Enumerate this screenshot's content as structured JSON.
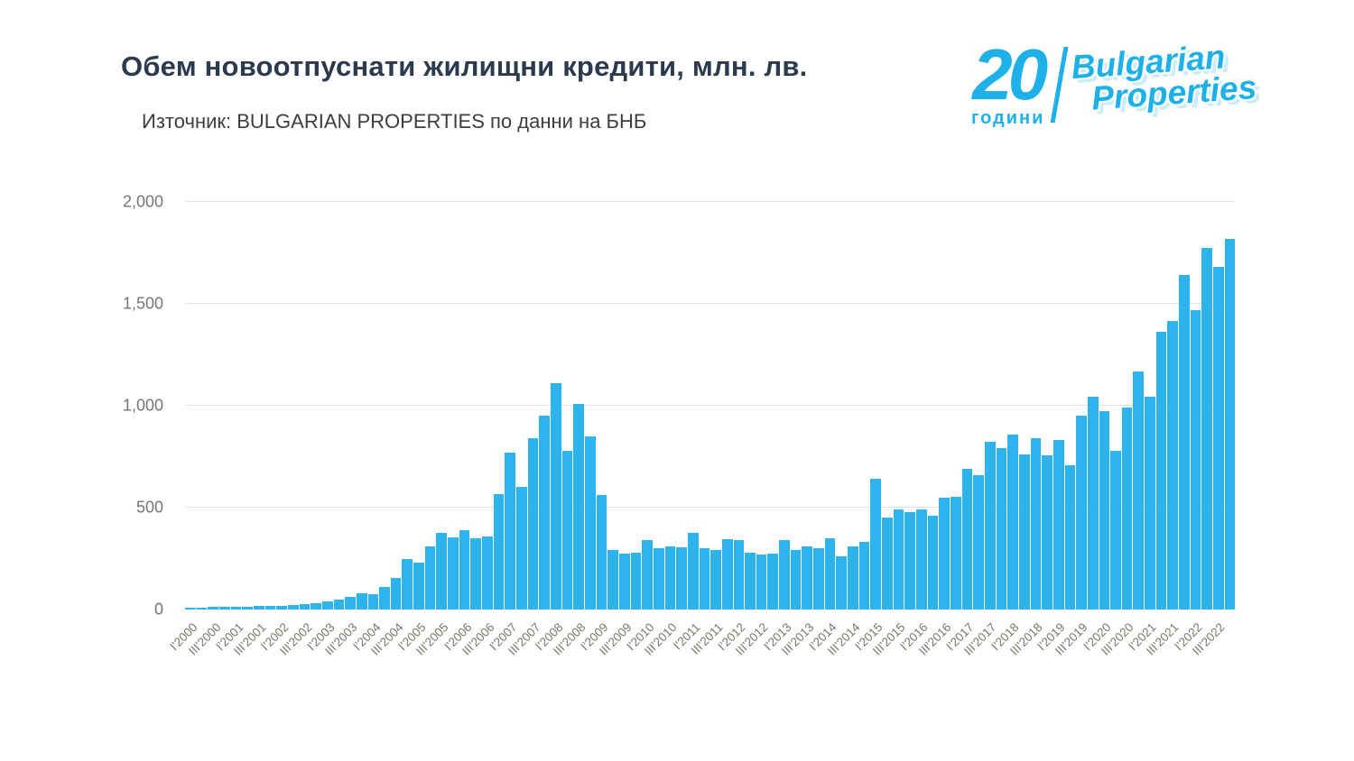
{
  "header": {
    "title": "Обем новоотпуснати жилищни кредити, млн. лв.",
    "subtitle": "Източник: BULGARIAN PROPERTIES по данни на БНБ"
  },
  "logo": {
    "number": "20",
    "years_word": "години",
    "brand_line1": "Bulgarian",
    "brand_line2": "Properties",
    "color": "#1db0e9"
  },
  "chart_data": {
    "type": "bar",
    "title": "Обем новоотпуснати жилищни кредити, млн. лв.",
    "source": "Източник: BULGARIAN PROPERTIES по данни на БНБ",
    "bar_color": "#2db3ee",
    "grid": "horizontal",
    "legend": "none",
    "ylim": [
      0,
      2000
    ],
    "yticks": [
      0,
      500,
      1000,
      1500,
      2000
    ],
    "ytick_labels": [
      "0",
      "500",
      "1,000",
      "1,500",
      "2,000"
    ],
    "x_tick_every": 2,
    "x_tick_labels": [
      "I'2000",
      "III'2000",
      "I'2001",
      "III'2001",
      "I'2002",
      "III'2002",
      "I'2003",
      "III'2003",
      "I'2004",
      "III'2004",
      "I'2005",
      "III'2005",
      "I'2006",
      "III'2006",
      "I'2007",
      "III'2007",
      "I'2008",
      "III'2008",
      "I'2009",
      "III'2009",
      "I'2010",
      "III'2010",
      "I'2011",
      "III'2011",
      "I'2012",
      "III'2012",
      "I'2013",
      "III'2013",
      "I'2014",
      "III'2014",
      "I'2015",
      "III'2015",
      "I'2016",
      "III'2016",
      "I'2017",
      "III'2017",
      "I'2018",
      "III'2018",
      "I'2019",
      "III'2019",
      "I'2020",
      "III'2020",
      "I'2021",
      "III'2021",
      "I'2022",
      "III'2022"
    ],
    "categories": [
      "I'2000",
      "II'2000",
      "III'2000",
      "IV'2000",
      "I'2001",
      "II'2001",
      "III'2001",
      "IV'2001",
      "I'2002",
      "II'2002",
      "III'2002",
      "IV'2002",
      "I'2003",
      "II'2003",
      "III'2003",
      "IV'2003",
      "I'2004",
      "II'2004",
      "III'2004",
      "IV'2004",
      "I'2005",
      "II'2005",
      "III'2005",
      "IV'2005",
      "I'2006",
      "II'2006",
      "III'2006",
      "IV'2006",
      "I'2007",
      "II'2007",
      "III'2007",
      "IV'2007",
      "I'2008",
      "II'2008",
      "III'2008",
      "IV'2008",
      "I'2009",
      "II'2009",
      "III'2009",
      "IV'2009",
      "I'2010",
      "II'2010",
      "III'2010",
      "IV'2010",
      "I'2011",
      "II'2011",
      "III'2011",
      "IV'2011",
      "I'2012",
      "II'2012",
      "III'2012",
      "IV'2012",
      "I'2013",
      "II'2013",
      "III'2013",
      "IV'2013",
      "I'2014",
      "II'2014",
      "III'2014",
      "IV'2014",
      "I'2015",
      "II'2015",
      "III'2015",
      "IV'2015",
      "I'2016",
      "II'2016",
      "III'2016",
      "IV'2016",
      "I'2017",
      "II'2017",
      "III'2017",
      "IV'2017",
      "I'2018",
      "II'2018",
      "III'2018",
      "IV'2018",
      "I'2019",
      "II'2019",
      "III'2019",
      "IV'2019",
      "I'2020",
      "II'2020",
      "III'2020",
      "IV'2020",
      "I'2021",
      "II'2021",
      "III'2021",
      "IV'2021",
      "I'2022",
      "II'2022",
      "III'2022",
      "IV'2022"
    ],
    "values": [
      8,
      10,
      12,
      14,
      13,
      15,
      18,
      16,
      17,
      22,
      26,
      32,
      38,
      50,
      62,
      80,
      75,
      110,
      155,
      250,
      230,
      310,
      375,
      355,
      390,
      350,
      360,
      565,
      770,
      600,
      840,
      950,
      1110,
      780,
      1010,
      850,
      560,
      290,
      275,
      280,
      340,
      300,
      310,
      305,
      375,
      300,
      290,
      345,
      340,
      280,
      270,
      275,
      340,
      290,
      310,
      300,
      350,
      260,
      310,
      330,
      640,
      450,
      490,
      480,
      490,
      460,
      550,
      555,
      690,
      660,
      825,
      790,
      860,
      760,
      840,
      755,
      830,
      710,
      950,
      1045,
      975,
      780,
      990,
      1170,
      1045,
      1365,
      1415,
      1640,
      1470,
      1775,
      1680,
      1820
    ]
  }
}
